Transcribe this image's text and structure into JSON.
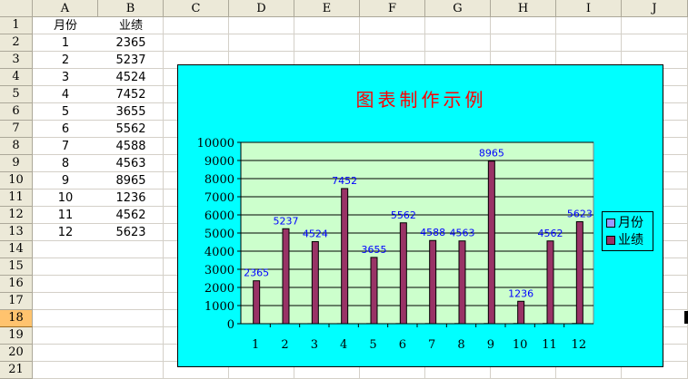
{
  "sheet": {
    "columns": [
      "A",
      "B",
      "C",
      "D",
      "E",
      "F",
      "G",
      "H",
      "I",
      "J"
    ],
    "rows": [
      "1",
      "2",
      "3",
      "4",
      "5",
      "6",
      "7",
      "8",
      "9",
      "10",
      "11",
      "12",
      "13",
      "14",
      "15",
      "16",
      "17",
      "18",
      "19",
      "20",
      "21"
    ],
    "selected_row": "18",
    "header_labels": {
      "a": "月份",
      "b": "业绩"
    },
    "data_rows": [
      {
        "month": "1",
        "value": "2365"
      },
      {
        "month": "2",
        "value": "5237"
      },
      {
        "month": "3",
        "value": "4524"
      },
      {
        "month": "4",
        "value": "7452"
      },
      {
        "month": "5",
        "value": "3655"
      },
      {
        "month": "6",
        "value": "5562"
      },
      {
        "month": "7",
        "value": "4588"
      },
      {
        "month": "8",
        "value": "4563"
      },
      {
        "month": "9",
        "value": "8965"
      },
      {
        "month": "10",
        "value": "1236"
      },
      {
        "month": "11",
        "value": "4562"
      },
      {
        "month": "12",
        "value": "5623"
      }
    ]
  },
  "chart_data": {
    "type": "bar",
    "title": "图表制作示例",
    "categories": [
      "1",
      "2",
      "3",
      "4",
      "5",
      "6",
      "7",
      "8",
      "9",
      "10",
      "11",
      "12"
    ],
    "series": [
      {
        "name": "月份",
        "values": [
          1,
          2,
          3,
          4,
          5,
          6,
          7,
          8,
          9,
          10,
          11,
          12
        ],
        "color": "#9999ff"
      },
      {
        "name": "业绩",
        "values": [
          2365,
          5237,
          4524,
          7452,
          3655,
          5562,
          4588,
          4563,
          8965,
          1236,
          4562,
          5623
        ],
        "color": "#993366"
      }
    ],
    "ylim": [
      0,
      10000
    ],
    "yticks": [
      0,
      1000,
      2000,
      3000,
      4000,
      5000,
      6000,
      7000,
      8000,
      9000,
      10000
    ],
    "grid": true,
    "legend": "right",
    "colors": {
      "chart_area": "#00ffff",
      "plot_area": "#ccffcc",
      "title": "#ff0000",
      "data_label": "#0000ff"
    }
  }
}
